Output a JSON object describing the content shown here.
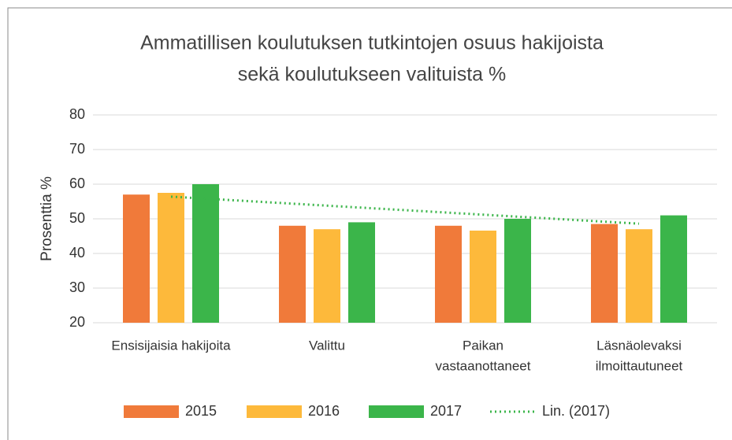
{
  "chart_data": {
    "type": "bar",
    "title": [
      "Ammatillisen koulutuksen tutkintojen osuus hakijoista",
      "sekä koulutukseen valituista %"
    ],
    "y_label": "Prosenttia %",
    "categories": [
      [
        "Ensisijaisia hakijoita"
      ],
      [
        "Valittu"
      ],
      [
        "Paikan",
        "vastaanottaneet"
      ],
      [
        "Läsnäolevaksi",
        "ilmoittautuneet"
      ]
    ],
    "series": [
      {
        "name": "2015",
        "color": "#f07a3a",
        "values": [
          57,
          48,
          48,
          48.5
        ]
      },
      {
        "name": "2016",
        "color": "#fdb93b",
        "values": [
          57.5,
          47,
          46.6,
          47
        ]
      },
      {
        "name": "2017",
        "color": "#3bb54a",
        "values": [
          60,
          49,
          50,
          51
        ]
      },
      {
        "name": "Lin. (2017)",
        "color": "#3bb54a",
        "type": "line",
        "dashed": true,
        "values": [
          56.4,
          53.8,
          51.2,
          48.6
        ]
      }
    ],
    "ylim": [
      20,
      80
    ],
    "yticks": [
      20,
      30,
      40,
      50,
      60,
      70,
      80
    ],
    "grid": true,
    "legend": "bottom"
  }
}
